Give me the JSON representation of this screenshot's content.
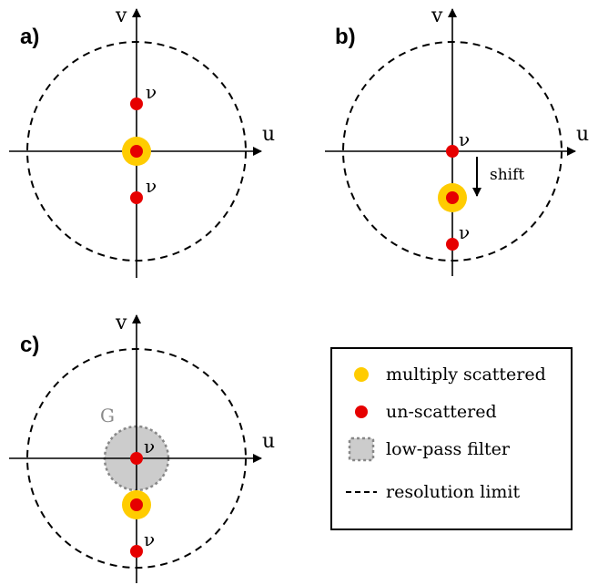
{
  "panels": {
    "a": {
      "label": "a)",
      "u_label": "u",
      "v_label": "v",
      "nu_top": "ν",
      "nu_bottom": "ν"
    },
    "b": {
      "label": "b)",
      "u_label": "u",
      "v_label": "v",
      "nu_center": "ν",
      "nu_bottom": "ν",
      "shift_label": "shift"
    },
    "c": {
      "label": "c)",
      "u_label": "u",
      "v_label": "v",
      "g_label": "G",
      "nu_center": "ν",
      "nu_bottom": "ν"
    }
  },
  "legend": {
    "items": [
      {
        "label": "multiply scattered"
      },
      {
        "label": "un-scattered"
      },
      {
        "label": "low-pass filter"
      },
      {
        "label": "resolution limit"
      }
    ]
  },
  "colors": {
    "multiply_scattered": "#ffcc00",
    "un_scattered": "#e60000",
    "low_pass_fill": "#cccccc",
    "low_pass_border": "#888888",
    "axis": "#000000"
  }
}
